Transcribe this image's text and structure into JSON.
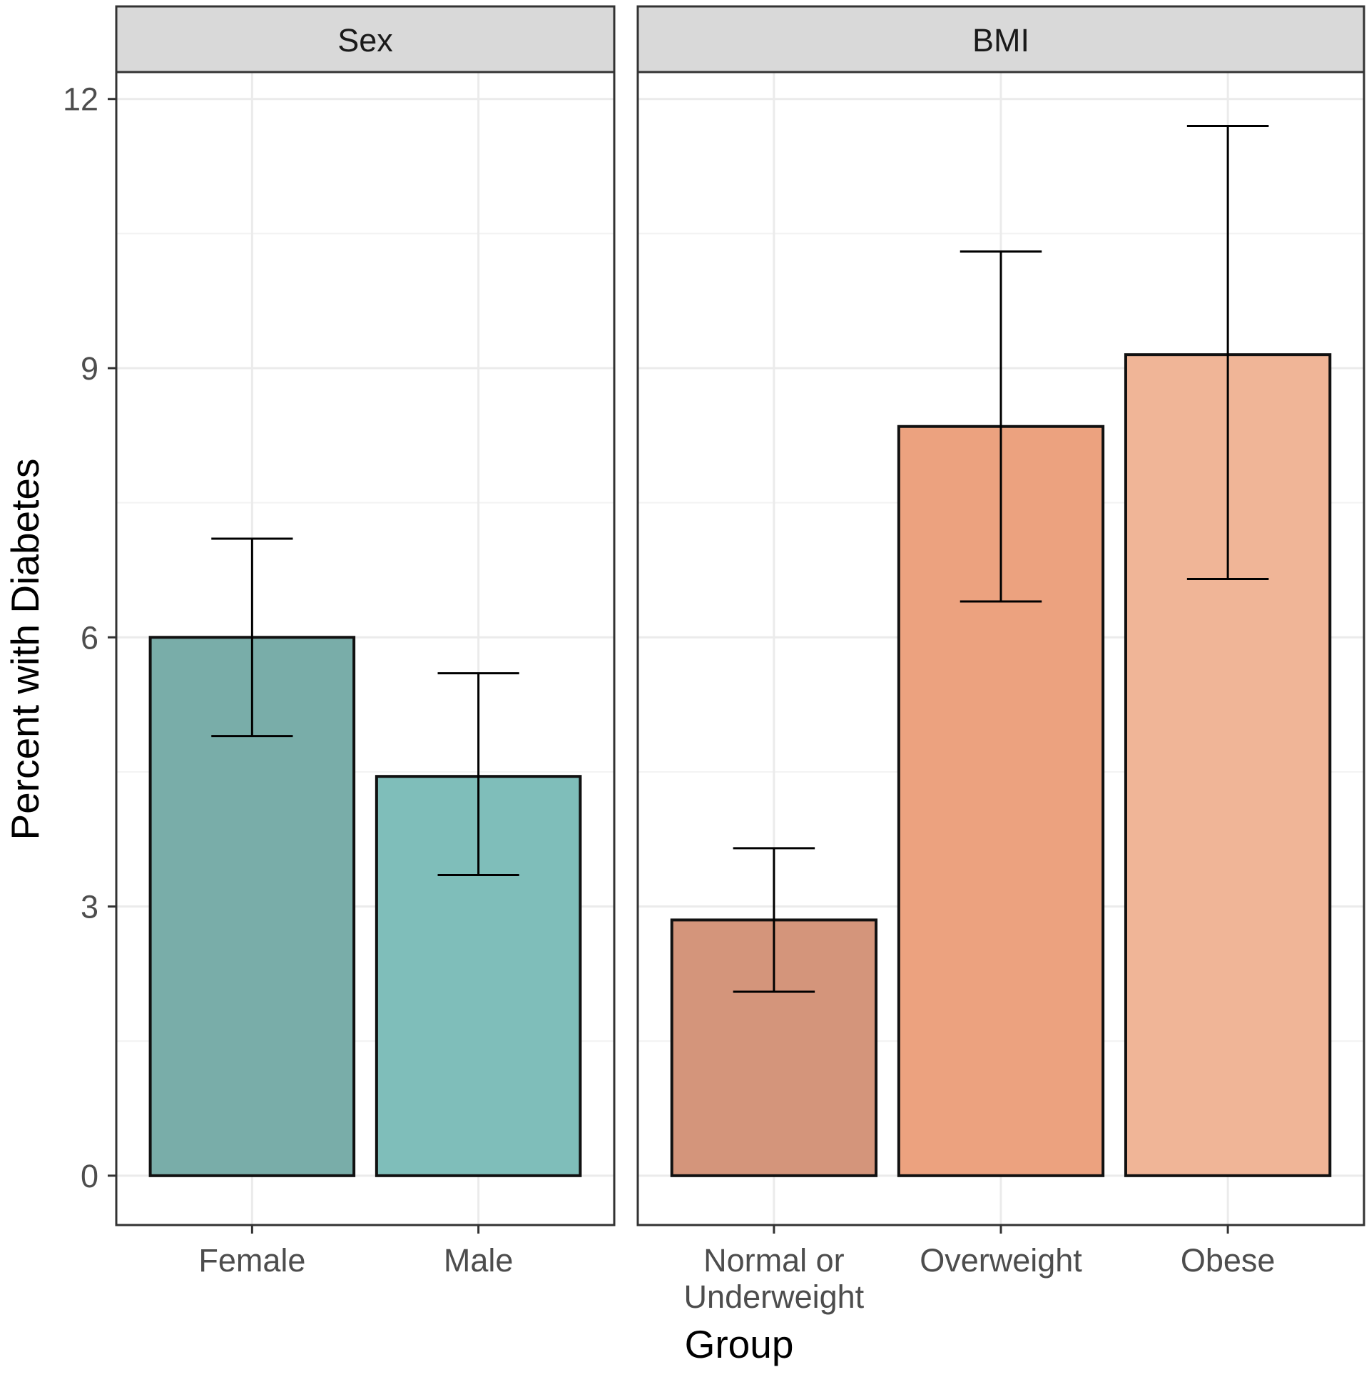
{
  "chart_data": {
    "type": "bar",
    "xlabel": "Group",
    "ylabel": "Percent with Diabetes",
    "ylim": [
      -0.55,
      12.3
    ],
    "yticks": [
      0,
      3,
      6,
      9,
      12
    ],
    "grid": true,
    "facets": [
      {
        "strip": "Sex",
        "categories": [
          "Female",
          "Male"
        ],
        "values": [
          6.0,
          4.45
        ],
        "ci_low": [
          4.9,
          3.35
        ],
        "ci_high": [
          7.1,
          5.6
        ],
        "colors": [
          "#79ada9",
          "#7fbeba"
        ]
      },
      {
        "strip": "BMI",
        "categories": [
          "Normal or Underweight",
          "Overweight",
          "Obese"
        ],
        "tick_lines": [
          [
            "Normal or",
            "Underweight"
          ],
          [
            "Overweight"
          ],
          [
            "Obese"
          ]
        ],
        "values": [
          2.85,
          8.35,
          9.15
        ],
        "ci_low": [
          2.05,
          6.4,
          6.65
        ],
        "ci_high": [
          3.65,
          10.3,
          11.7
        ],
        "colors": [
          "#d4957b",
          "#eca27f",
          "#f0b597"
        ]
      }
    ]
  }
}
